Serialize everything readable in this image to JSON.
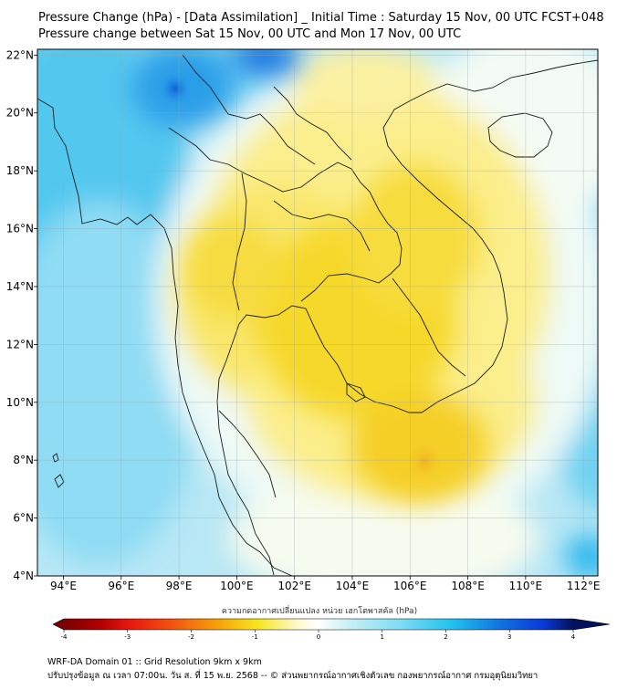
{
  "title": "Pressure Change (hPa) - [Data Assimilation] _ Initial Time : Saturday 15 Nov, 00 UTC FCST+048",
  "subtitle": "Pressure change between Sat 15 Nov, 00 UTC and Mon 17 Nov, 00 UTC",
  "map": {
    "lat_labels": [
      "22°N",
      "20°N",
      "18°N",
      "16°N",
      "14°N",
      "12°N",
      "10°N",
      "8°N",
      "6°N",
      "4°N"
    ],
    "lon_labels": [
      "94°E",
      "96°E",
      "98°E",
      "100°E",
      "102°E",
      "104°E",
      "106°E",
      "108°E",
      "110°E",
      "112°E"
    ],
    "lat_values": [
      22,
      20,
      18,
      16,
      14,
      12,
      10,
      8,
      6,
      4
    ],
    "lon_values": [
      94,
      96,
      98,
      100,
      102,
      104,
      106,
      108,
      110,
      112
    ],
    "lat_range": [
      4,
      22.2
    ],
    "lon_range": [
      93.1,
      112.5
    ]
  },
  "colorbar": {
    "label": "ความกดอากาศเปลี่ยนแปลง หน่วย เฮกโตพาสคัล (hPa)",
    "ticks": [
      "-4",
      "-3",
      "-2",
      "-1",
      "0",
      "1",
      "2",
      "3",
      "4"
    ],
    "tick_values": [
      -4,
      -3,
      -2,
      -1,
      0,
      1,
      2,
      3,
      4
    ],
    "range": [
      -4,
      4
    ],
    "colors": {
      "min": "#7a0000",
      "red": "#e8170f",
      "orange": "#f5a00a",
      "yellow": "#f7e51e",
      "pale": "#fdf9d0",
      "white": "#ffffff",
      "palecyan": "#c7f0f6",
      "cyan": "#22c3ee",
      "blue": "#0a3ad8",
      "max": "#03115a"
    }
  },
  "footer": {
    "line1": "WRF-DA Domain 01 :: Grid Resolution 9km x 9km",
    "line2": "ปรับปรุงข้อมูล ณ เวลา 07:00น. วัน ส. ที่ 15 พ.ย. 2568 -- © ส่วนพยากรณ์อากาศเชิงตัวเลข กองพยากรณ์อากาศ กรมอุตุนิยมวิทยา"
  }
}
